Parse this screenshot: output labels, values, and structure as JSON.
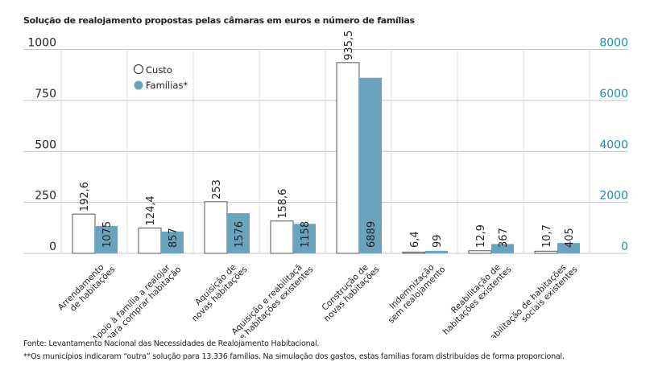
{
  "chart_data": {
    "type": "bar",
    "title": "Solução de realojamento propostas pelas câmaras em euros e número de famílias",
    "categories": [
      [
        "Arrendamento",
        "de habitações"
      ],
      [
        "Apoio à família a realojar",
        "para comprar habitação"
      ],
      [
        "Aquisição de",
        "novas habitações"
      ],
      [
        "Aquisição e reabilitaçã",
        "e habitações existentes"
      ],
      [
        "Construção de",
        "novas habitações"
      ],
      [
        "Indemnização",
        "sem realojamento"
      ],
      [
        "Reabilitação de",
        "habitações existentes"
      ],
      [
        "Reabilitação de habitações",
        "sociais existentes"
      ]
    ],
    "series": [
      {
        "name": "Custo",
        "axis": "left",
        "color": "#ffffff",
        "values": [
          192.6,
          124.4,
          253,
          158.6,
          935.5,
          6.4,
          12.9,
          10.7
        ],
        "labels": [
          "192,6",
          "124,4",
          "253",
          "158,6",
          "935,5",
          "6,4",
          "12,9",
          "10,7"
        ]
      },
      {
        "name": "Famílias*",
        "axis": "right",
        "color": "#6aa3bd",
        "values": [
          1075,
          857,
          1576,
          1158,
          6889,
          99,
          367,
          405
        ],
        "labels": [
          "1075",
          "857",
          "1576",
          "1158",
          "6889",
          "99",
          "367",
          "405"
        ]
      }
    ],
    "y_left": {
      "range": [
        0,
        1000
      ],
      "ticks": [
        "0",
        "250",
        "500",
        "750",
        "1000"
      ]
    },
    "y_right": {
      "range": [
        0,
        8000
      ],
      "ticks": [
        "0",
        "2000",
        "4000",
        "6000",
        "8000"
      ],
      "color": "#1d8db0"
    },
    "grid": true,
    "legend": "top-left"
  },
  "footer": {
    "source": "Fonte: Levantamento Nacional das Necessidades de Realojamento Habitacional.",
    "note": "**Os municípios indicaram “outra” solução para 13.336 famílias. Na simulação dos gastos, estas famílias foram distribuídas de forma proporcional."
  }
}
